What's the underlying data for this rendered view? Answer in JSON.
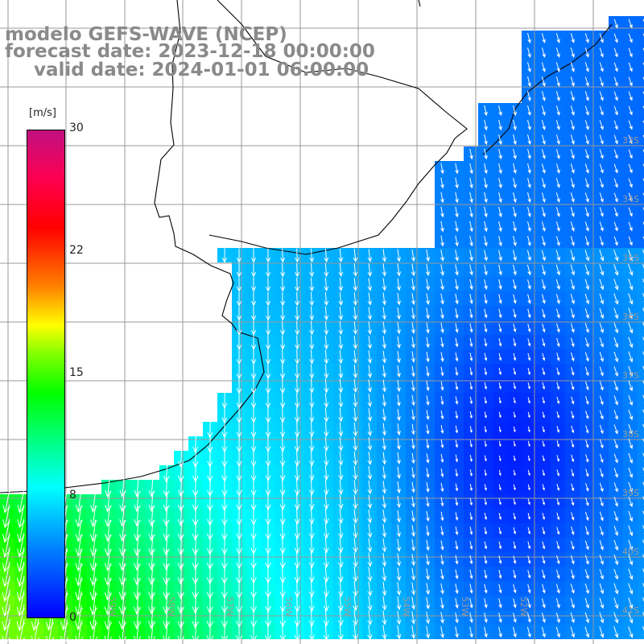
{
  "title": {
    "line1": "modelo GEFS-WAVE (NCEP)",
    "line2": "forecast date: 2023-12-18 00:00:00",
    "line3": "valid date: 2024-01-01 06:00:00"
  },
  "colorbar": {
    "unit": "[m/s]",
    "ticks": [
      "30",
      "22",
      "15",
      "8",
      "0"
    ],
    "colors": [
      "#0000ff",
      "#0080ff",
      "#00ffff",
      "#00ff00",
      "#ffff00",
      "#ff8000",
      "#ff0000",
      "#c01080"
    ]
  },
  "map": {
    "lat_labels": [
      "33S",
      "34S",
      "35S",
      "36S",
      "37S",
      "38S",
      "39S",
      "40S",
      "41S"
    ],
    "lon_labels": [
      "61W",
      "60W",
      "59W",
      "58W",
      "57W",
      "56W",
      "55W",
      "54W",
      "53W",
      "52W"
    ],
    "field": "wind speed and direction",
    "land_color": "#ffffff",
    "grid_color": "#999999",
    "coast_color": "#000000"
  }
}
